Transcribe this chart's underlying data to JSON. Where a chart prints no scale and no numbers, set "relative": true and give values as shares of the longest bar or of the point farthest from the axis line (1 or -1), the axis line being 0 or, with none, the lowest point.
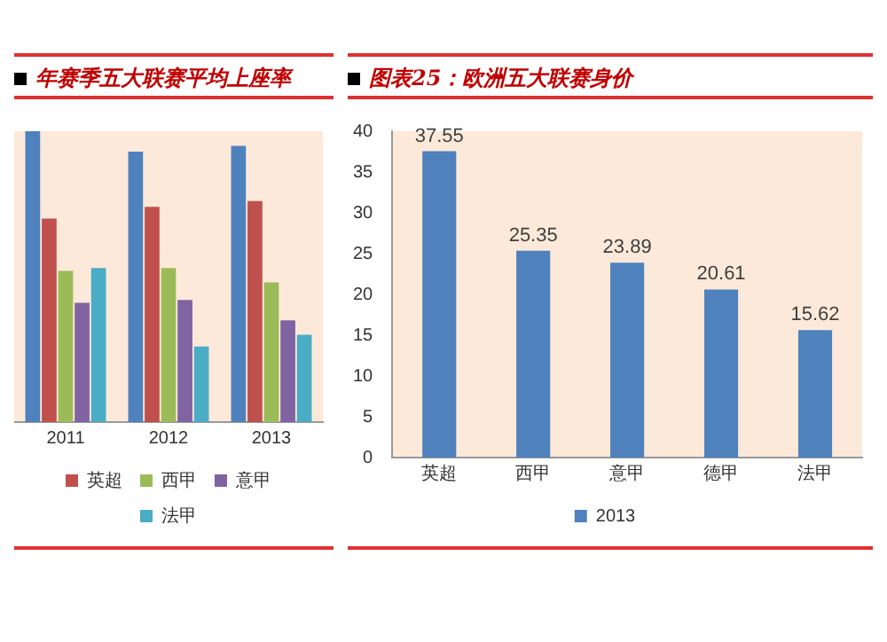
{
  "chart_data": [
    {
      "type": "bar",
      "title": "年赛季五大联赛平均上座率",
      "categories": [
        "2011",
        "2012",
        "2013"
      ],
      "relative": true,
      "legend": "bottom",
      "series": [
        {
          "color": "#4f81bd",
          "values": [
            1,
            0.93,
            0.95
          ]
        },
        {
          "name": "英超",
          "color": "#c0504d",
          "values": [
            0.7,
            0.74,
            0.76
          ]
        },
        {
          "name": "西甲",
          "color": "#9bbb59",
          "values": [
            0.52,
            0.53,
            0.48
          ]
        },
        {
          "name": "意甲",
          "color": "#8064a2",
          "values": [
            0.41,
            0.42,
            0.35
          ]
        },
        {
          "name": "法甲",
          "color": "#4bacc6",
          "values": [
            0.53,
            0.26,
            0.3
          ]
        }
      ]
    },
    {
      "type": "bar",
      "title": "图表25：欧洲五大联赛身价",
      "categories": [
        "英超",
        "西甲",
        "意甲",
        "德甲",
        "法甲"
      ],
      "ylim": [
        0,
        40
      ],
      "yticks": [
        0,
        5,
        10,
        15,
        20,
        25,
        30,
        35,
        40
      ],
      "data_labels": true,
      "legend": "bottom",
      "series": [
        {
          "name": "2013",
          "color": "#4f81bd",
          "values": [
            37.55,
            25.35,
            23.89,
            20.61,
            15.62
          ]
        }
      ]
    }
  ]
}
